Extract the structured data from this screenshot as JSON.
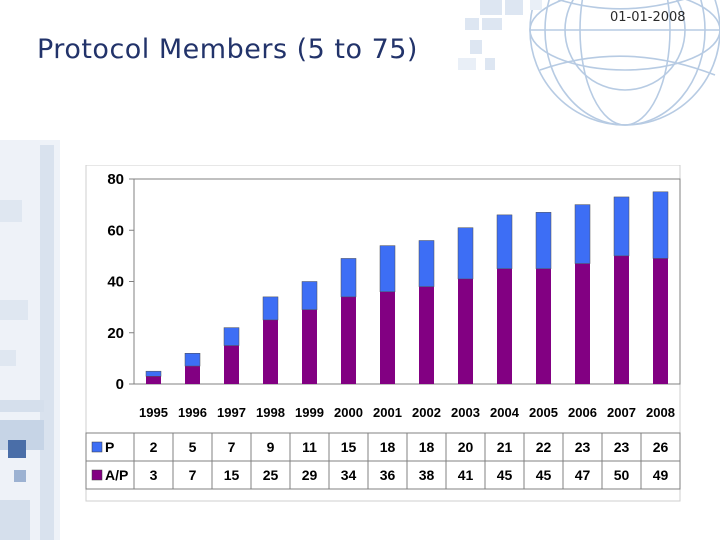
{
  "header": {
    "date": "01-01-2008",
    "title": "Protocol Members (5 to 75)"
  },
  "colors": {
    "p": "#3d6ef5",
    "ap": "#820082",
    "title": "#22336a"
  },
  "chart_data": {
    "type": "bar",
    "stacked": true,
    "title": "Protocol Members (5 to 75)",
    "categories": [
      "1995",
      "1996",
      "1997",
      "1998",
      "1999",
      "2000",
      "2001",
      "2002",
      "2003",
      "2004",
      "2005",
      "2006",
      "2007",
      "2008"
    ],
    "series": [
      {
        "name": "A/P",
        "values": [
          3,
          7,
          15,
          25,
          29,
          34,
          36,
          38,
          41,
          45,
          45,
          47,
          50,
          49
        ]
      },
      {
        "name": "P",
        "values": [
          2,
          5,
          7,
          9,
          11,
          15,
          18,
          18,
          20,
          21,
          22,
          23,
          23,
          26
        ]
      }
    ],
    "ylim": [
      0,
      80
    ],
    "yticks": [
      0,
      20,
      40,
      60,
      80
    ],
    "grid": false,
    "legend": "data-table"
  }
}
